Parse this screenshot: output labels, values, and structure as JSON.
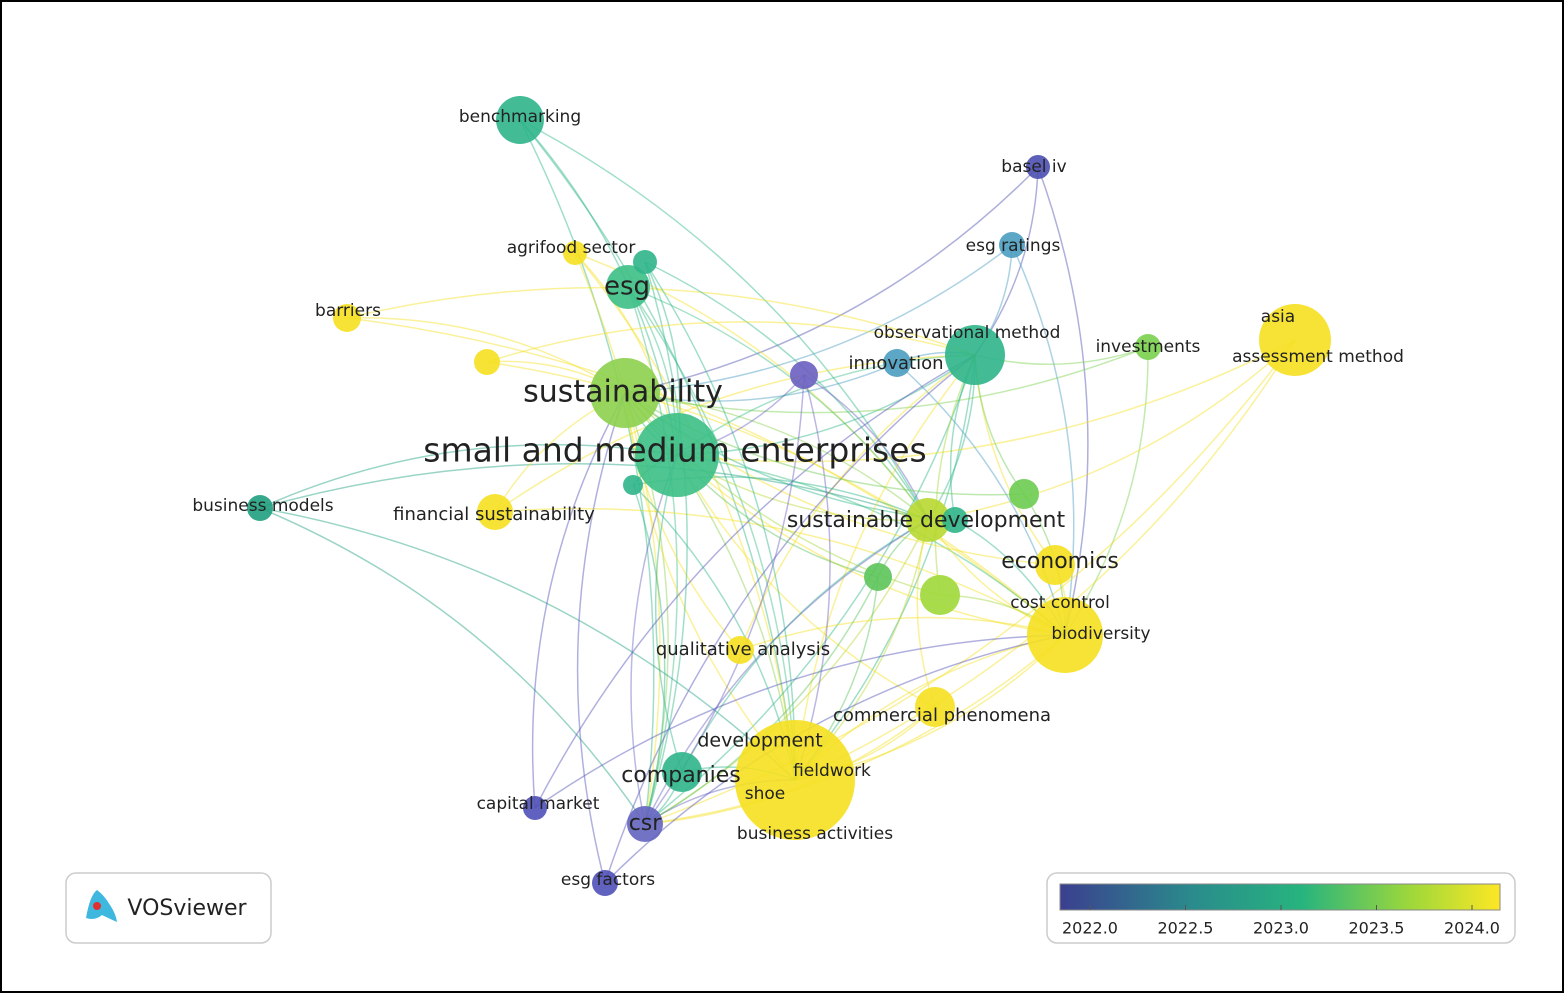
{
  "nodes": [
    {
      "label": "benchmarking"
    },
    {
      "label": "basel iv"
    },
    {
      "label": "agrifood sector"
    },
    {
      "label": "esg ratings"
    },
    {
      "label": "esg"
    },
    {
      "label": "barriers"
    },
    {
      "label": "observational method"
    },
    {
      "label": "investments"
    },
    {
      "label": "asia"
    },
    {
      "label": "assessment method"
    },
    {
      "label": "innovation"
    },
    {
      "label": "sustainability"
    },
    {
      "label": "small and medium enterprises"
    },
    {
      "label": "business models"
    },
    {
      "label": "financial sustainability"
    },
    {
      "label": "sustainable development"
    },
    {
      "label": "economics"
    },
    {
      "label": "cost control"
    },
    {
      "label": "biodiversity"
    },
    {
      "label": "qualitative analysis"
    },
    {
      "label": "commercial phenomena"
    },
    {
      "label": "development"
    },
    {
      "label": "fieldwork"
    },
    {
      "label": "companies"
    },
    {
      "label": "shoe"
    },
    {
      "label": "capital market"
    },
    {
      "label": "csr"
    },
    {
      "label": "business activities"
    },
    {
      "label": "esg factors"
    }
  ],
  "color_scale": {
    "ticks": [
      {
        "value": 2022,
        "label": "2022.0"
      },
      {
        "value": 2022.5,
        "label": "2022.5"
      },
      {
        "value": 2023,
        "label": "2023.0"
      },
      {
        "value": 2023.5,
        "label": "2023.5"
      },
      {
        "value": 2024,
        "label": "2024.0"
      }
    ]
  },
  "logo": "VOSviewer"
}
